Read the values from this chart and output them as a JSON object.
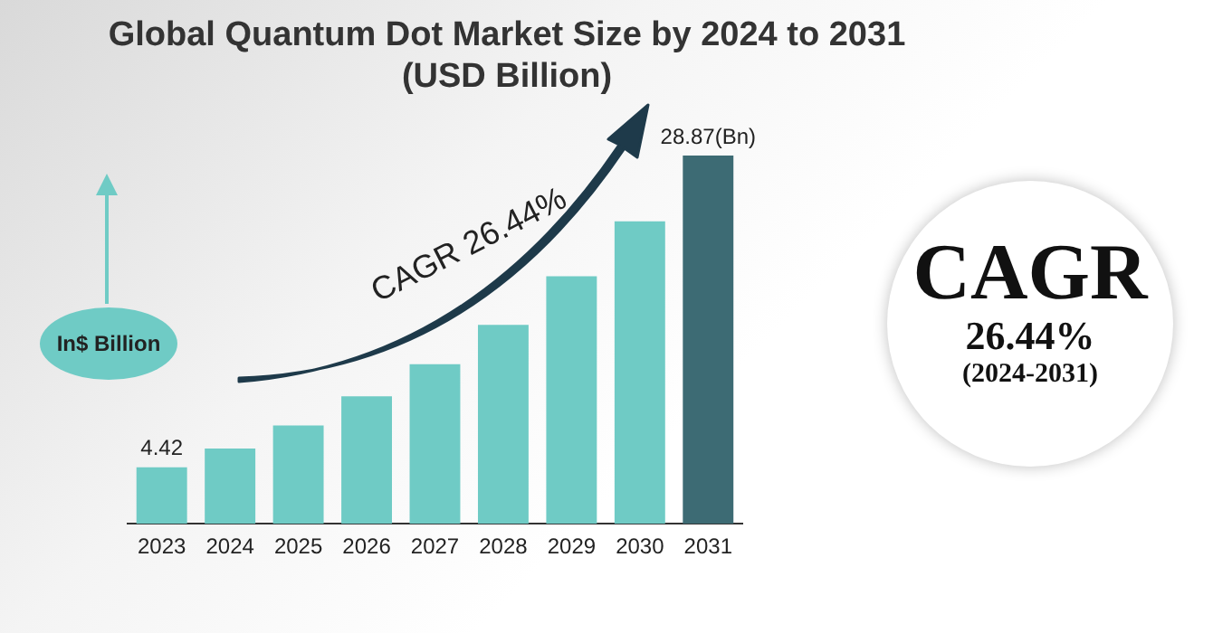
{
  "chart_data": {
    "type": "bar",
    "title": "Global Quantum Dot Market Size by 2024 to 2031",
    "subtitle": "(USD Billion)",
    "ylabel": "In$ Billion",
    "categories": [
      "2023",
      "2024",
      "2025",
      "2026",
      "2027",
      "2028",
      "2029",
      "2030",
      "2031"
    ],
    "values": [
      4.42,
      5.9,
      7.7,
      10.0,
      12.5,
      15.6,
      19.4,
      23.7,
      28.87
    ],
    "colors": [
      "#6fcbc5",
      "#6fcbc5",
      "#6fcbc5",
      "#6fcbc5",
      "#6fcbc5",
      "#6fcbc5",
      "#6fcbc5",
      "#6fcbc5",
      "#3d6b74"
    ],
    "value_labels": [
      "4.42",
      null,
      null,
      null,
      null,
      null,
      null,
      null,
      "28.87(Bn)"
    ],
    "annotations": [
      "CAGR 26.44%",
      "CAGR",
      "26.44%",
      "(2024-2031)"
    ],
    "grid": false,
    "legend": false
  }
}
